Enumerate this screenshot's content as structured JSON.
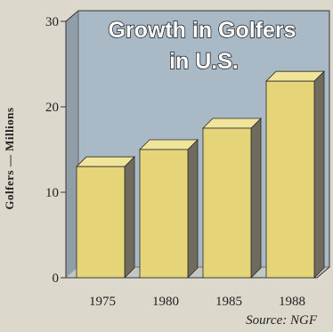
{
  "chart_data": {
    "type": "bar",
    "title_lines": [
      "Growth in Golfers",
      "in U.S."
    ],
    "ylabel": "Golfers — Millions",
    "categories": [
      "1975",
      "1980",
      "1985",
      "1988"
    ],
    "values": [
      13.0,
      15.0,
      17.5,
      23.0
    ],
    "ylim": [
      0,
      30
    ],
    "yticks": [
      "0",
      "10",
      "20",
      "30"
    ],
    "source": "Source: NGF",
    "grid": false,
    "colors": {
      "panel": "#a9b9c6",
      "floor": "#c4c7c4",
      "bar_front": "#e6d479",
      "bar_top": "#f0e49a",
      "bar_side": "#6f6c5e"
    }
  }
}
